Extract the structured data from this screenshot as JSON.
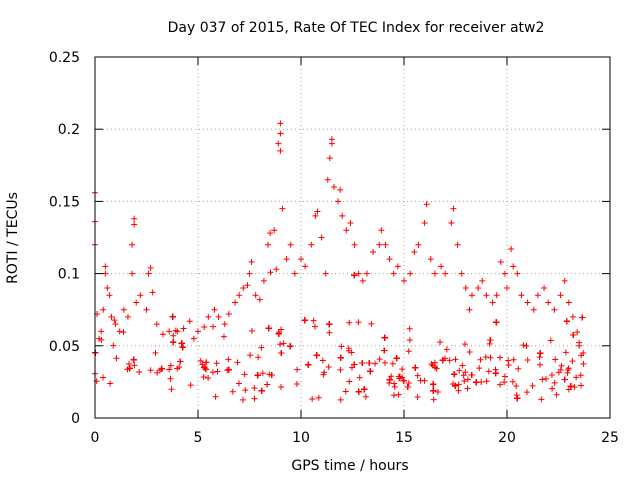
{
  "chart_data": {
    "type": "scatter",
    "title": "Day 037 of 2015, Rate Of TEC Index for receiver atw2",
    "xlabel": "GPS time / hours",
    "ylabel": "ROTI / TECUs",
    "xlim": [
      0,
      25
    ],
    "ylim": [
      0,
      0.25
    ],
    "x_ticks": [
      0,
      5,
      10,
      15,
      20,
      25
    ],
    "x_tick_labels": [
      "0",
      "5",
      "10",
      "15",
      "20",
      "25"
    ],
    "y_ticks": [
      0,
      0.05,
      0.1,
      0.15,
      0.2,
      0.25
    ],
    "y_tick_labels": [
      "0",
      "0.05",
      "0.1",
      "0.15",
      "0.2",
      "0.25"
    ],
    "grid": true,
    "marker": "+",
    "color": "#ff0000",
    "series": [
      {
        "points": [
          [
            0.0,
            0.156
          ],
          [
            0.0,
            0.136
          ],
          [
            0.0,
            0.12
          ],
          [
            0.1,
            0.072
          ],
          [
            0.2,
            0.055
          ],
          [
            0.3,
            0.06
          ],
          [
            0.4,
            0.075
          ],
          [
            0.5,
            0.1
          ],
          [
            0.5,
            0.105
          ],
          [
            0.6,
            0.09
          ],
          [
            0.7,
            0.085
          ],
          [
            0.8,
            0.07
          ],
          [
            1.0,
            0.065
          ],
          [
            1.2,
            0.06
          ],
          [
            1.4,
            0.075
          ],
          [
            1.6,
            0.07
          ],
          [
            1.8,
            0.1
          ],
          [
            1.8,
            0.12
          ],
          [
            1.9,
            0.134
          ],
          [
            1.9,
            0.138
          ],
          [
            2.0,
            0.08
          ],
          [
            2.2,
            0.085
          ],
          [
            2.5,
            0.075
          ],
          [
            2.6,
            0.1
          ],
          [
            2.7,
            0.104
          ],
          [
            2.8,
            0.087
          ],
          [
            3.0,
            0.065
          ],
          [
            3.3,
            0.058
          ],
          [
            3.6,
            0.06
          ],
          [
            3.8,
            0.057
          ],
          [
            4.0,
            0.06
          ],
          [
            4.3,
            0.062
          ],
          [
            4.6,
            0.067
          ],
          [
            4.8,
            0.055
          ],
          [
            5.0,
            0.06
          ],
          [
            5.3,
            0.063
          ],
          [
            5.5,
            0.07
          ],
          [
            5.8,
            0.075
          ],
          [
            6.0,
            0.07
          ],
          [
            6.3,
            0.065
          ],
          [
            6.5,
            0.072
          ],
          [
            6.8,
            0.08
          ],
          [
            7.0,
            0.085
          ],
          [
            7.2,
            0.09
          ],
          [
            7.4,
            0.092
          ],
          [
            7.5,
            0.1
          ],
          [
            7.6,
            0.108
          ],
          [
            7.8,
            0.085
          ],
          [
            8.0,
            0.082
          ],
          [
            8.2,
            0.095
          ],
          [
            8.4,
            0.12
          ],
          [
            8.5,
            0.128
          ],
          [
            8.7,
            0.13
          ],
          [
            8.8,
            0.103
          ],
          [
            8.9,
            0.19
          ],
          [
            9.0,
            0.197
          ],
          [
            9.0,
            0.204
          ],
          [
            9.0,
            0.185
          ],
          [
            9.1,
            0.145
          ],
          [
            9.3,
            0.11
          ],
          [
            9.5,
            0.12
          ],
          [
            9.7,
            0.1
          ],
          [
            10.0,
            0.11
          ],
          [
            10.2,
            0.105
          ],
          [
            10.5,
            0.12
          ],
          [
            10.7,
            0.14
          ],
          [
            10.8,
            0.143
          ],
          [
            11.0,
            0.125
          ],
          [
            11.2,
            0.1
          ],
          [
            11.3,
            0.165
          ],
          [
            11.4,
            0.18
          ],
          [
            11.5,
            0.19
          ],
          [
            11.5,
            0.193
          ],
          [
            11.6,
            0.16
          ],
          [
            11.8,
            0.15
          ],
          [
            11.9,
            0.158
          ],
          [
            12.0,
            0.14
          ],
          [
            12.2,
            0.13
          ],
          [
            12.4,
            0.135
          ],
          [
            12.6,
            0.12
          ],
          [
            12.8,
            0.1
          ],
          [
            13.0,
            0.095
          ],
          [
            13.2,
            0.1
          ],
          [
            13.5,
            0.115
          ],
          [
            13.8,
            0.12
          ],
          [
            13.9,
            0.13
          ],
          [
            14.1,
            0.12
          ],
          [
            14.3,
            0.11
          ],
          [
            14.5,
            0.1
          ],
          [
            14.7,
            0.105
          ],
          [
            15.0,
            0.095
          ],
          [
            15.3,
            0.1
          ],
          [
            15.5,
            0.115
          ],
          [
            15.7,
            0.12
          ],
          [
            16.0,
            0.135
          ],
          [
            16.1,
            0.148
          ],
          [
            16.3,
            0.11
          ],
          [
            16.5,
            0.1
          ],
          [
            16.8,
            0.105
          ],
          [
            17.0,
            0.1
          ],
          [
            17.3,
            0.135
          ],
          [
            17.4,
            0.145
          ],
          [
            17.6,
            0.12
          ],
          [
            17.8,
            0.1
          ],
          [
            18.0,
            0.09
          ],
          [
            18.3,
            0.085
          ],
          [
            18.6,
            0.09
          ],
          [
            18.8,
            0.095
          ],
          [
            19.0,
            0.085
          ],
          [
            19.3,
            0.08
          ],
          [
            19.5,
            0.085
          ],
          [
            19.7,
            0.108
          ],
          [
            19.9,
            0.1
          ],
          [
            20.0,
            0.09
          ],
          [
            20.2,
            0.117
          ],
          [
            20.3,
            0.105
          ],
          [
            20.5,
            0.1
          ],
          [
            20.7,
            0.085
          ],
          [
            21.0,
            0.08
          ],
          [
            21.3,
            0.075
          ],
          [
            21.5,
            0.085
          ],
          [
            21.8,
            0.09
          ],
          [
            22.0,
            0.08
          ],
          [
            22.3,
            0.075
          ],
          [
            22.6,
            0.085
          ],
          [
            22.8,
            0.095
          ],
          [
            23.0,
            0.08
          ],
          [
            23.2,
            0.07
          ],
          [
            23.5,
            0.05
          ],
          [
            23.7,
            0.045
          ]
        ]
      }
    ]
  }
}
